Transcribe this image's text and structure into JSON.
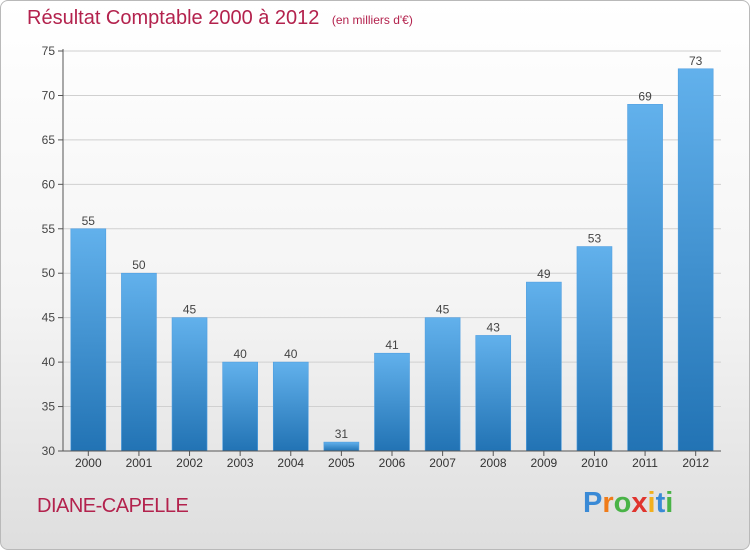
{
  "title": "Résultat Comptable 2000 à 2012",
  "unit_note": "(en milliers d'€)",
  "place_name": "DIANE-CAPELLE",
  "logo": {
    "text": "Proxiti",
    "letters": [
      "P",
      "r",
      "o",
      "x",
      "i",
      "t",
      "i"
    ],
    "colors": [
      "#3a8ad6",
      "#f07c1a",
      "#49b347",
      "#e0342e",
      "#f2b01e",
      "#3a8ad6",
      "#49b347"
    ]
  },
  "colors": {
    "title": "#b3224d",
    "bar_top": "#62b1ec",
    "bar_bottom": "#2273b4",
    "grid": "#d0d0d0"
  },
  "chart_data": {
    "type": "bar",
    "categories": [
      "2000",
      "2001",
      "2002",
      "2003",
      "2004",
      "2005",
      "2006",
      "2007",
      "2008",
      "2009",
      "2010",
      "2011",
      "2012"
    ],
    "values": [
      55,
      50,
      45,
      40,
      40,
      31,
      41,
      45,
      43,
      49,
      53,
      69,
      73
    ],
    "ylim": [
      30,
      75
    ],
    "yticks": [
      30,
      35,
      40,
      45,
      50,
      55,
      60,
      65,
      70,
      75
    ],
    "grid": true,
    "data_labels": true
  }
}
